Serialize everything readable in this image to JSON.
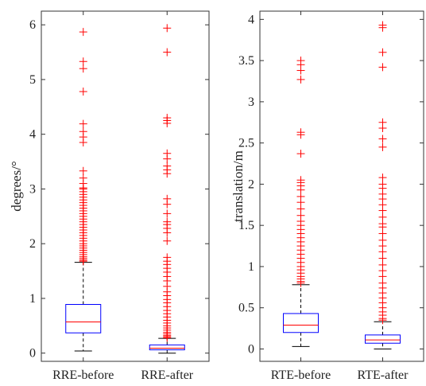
{
  "chart_data": [
    {
      "type": "boxplot",
      "title": "",
      "ylabel": "degrees/°",
      "ylim": [
        -0.15,
        6.25
      ],
      "yticks": [
        0,
        1,
        2,
        3,
        4,
        5,
        6
      ],
      "colors": {
        "box": "#0000ff",
        "median": "#ff0000",
        "outlier": "#ff0000",
        "whisker": "#000000"
      },
      "categories": [
        "RRE-before",
        "RRE-after"
      ],
      "boxes": [
        {
          "name": "RRE-before",
          "whisker_low": 0.04,
          "q1": 0.37,
          "median": 0.57,
          "q3": 0.89,
          "whisker_high": 1.66,
          "outliers": [
            5.87,
            5.33,
            5.2,
            4.78,
            4.19,
            4.05,
            3.95,
            3.85,
            3.33,
            3.2,
            3.1,
            3.02,
            3.0,
            2.95,
            2.9,
            2.85,
            2.8,
            2.75,
            2.7,
            2.65,
            2.6,
            2.55,
            2.5,
            2.45,
            2.4,
            2.35,
            2.3,
            2.25,
            2.2,
            2.15,
            2.1,
            2.05,
            2.0,
            1.96,
            1.92,
            1.88,
            1.84,
            1.8,
            1.76,
            1.73,
            1.7,
            1.68
          ]
        },
        {
          "name": "RRE-after",
          "whisker_low": 0.0,
          "q1": 0.06,
          "median": 0.09,
          "q3": 0.15,
          "whisker_high": 0.27,
          "outliers": [
            5.94,
            5.5,
            4.3,
            4.25,
            4.2,
            3.65,
            3.55,
            3.42,
            3.35,
            3.28,
            2.82,
            2.72,
            2.55,
            2.4,
            2.35,
            2.28,
            2.2,
            2.05,
            1.75,
            1.68,
            1.62,
            1.55,
            1.48,
            1.4,
            1.32,
            1.22,
            1.12,
            1.05,
            0.98,
            0.92,
            0.85,
            0.78,
            0.72,
            0.66,
            0.6,
            0.55,
            0.5,
            0.46,
            0.42,
            0.38,
            0.35,
            0.32,
            0.3,
            0.28
          ]
        }
      ]
    },
    {
      "type": "boxplot",
      "title": "",
      "ylabel": "translation/m",
      "ylim": [
        -0.15,
        4.1
      ],
      "yticks": [
        0,
        0.5,
        1,
        1.5,
        2,
        2.5,
        3,
        3.5,
        4
      ],
      "ytick_labels": [
        "0",
        "0.5",
        "1",
        "1.5",
        "2",
        "2.5",
        "3",
        "3.5",
        "4"
      ],
      "colors": {
        "box": "#0000ff",
        "median": "#ff0000",
        "outlier": "#ff0000",
        "whisker": "#000000"
      },
      "categories": [
        "RTE-before",
        "RTE-after"
      ],
      "boxes": [
        {
          "name": "RTE-before",
          "whisker_low": 0.03,
          "q1": 0.2,
          "median": 0.29,
          "q3": 0.43,
          "whisker_high": 0.78,
          "outliers": [
            3.5,
            3.45,
            3.38,
            3.27,
            2.63,
            2.6,
            2.37,
            2.05,
            2.02,
            1.98,
            1.93,
            1.85,
            1.78,
            1.7,
            1.62,
            1.55,
            1.5,
            1.45,
            1.4,
            1.35,
            1.3,
            1.25,
            1.2,
            1.15,
            1.1,
            1.05,
            1.0,
            0.96,
            0.92,
            0.88,
            0.85,
            0.82,
            0.8
          ]
        },
        {
          "name": "RTE-after",
          "whisker_low": 0.0,
          "q1": 0.07,
          "median": 0.11,
          "q3": 0.17,
          "whisker_high": 0.33,
          "outliers": [
            3.93,
            3.9,
            3.6,
            3.42,
            2.75,
            2.68,
            2.55,
            2.45,
            2.08,
            2.0,
            1.95,
            1.88,
            1.82,
            1.75,
            1.68,
            1.6,
            1.52,
            1.48,
            1.4,
            1.32,
            1.25,
            1.18,
            1.1,
            1.02,
            0.95,
            0.88,
            0.8,
            0.74,
            0.68,
            0.62,
            0.56,
            0.5,
            0.45,
            0.41,
            0.37,
            0.35
          ]
        }
      ]
    }
  ]
}
